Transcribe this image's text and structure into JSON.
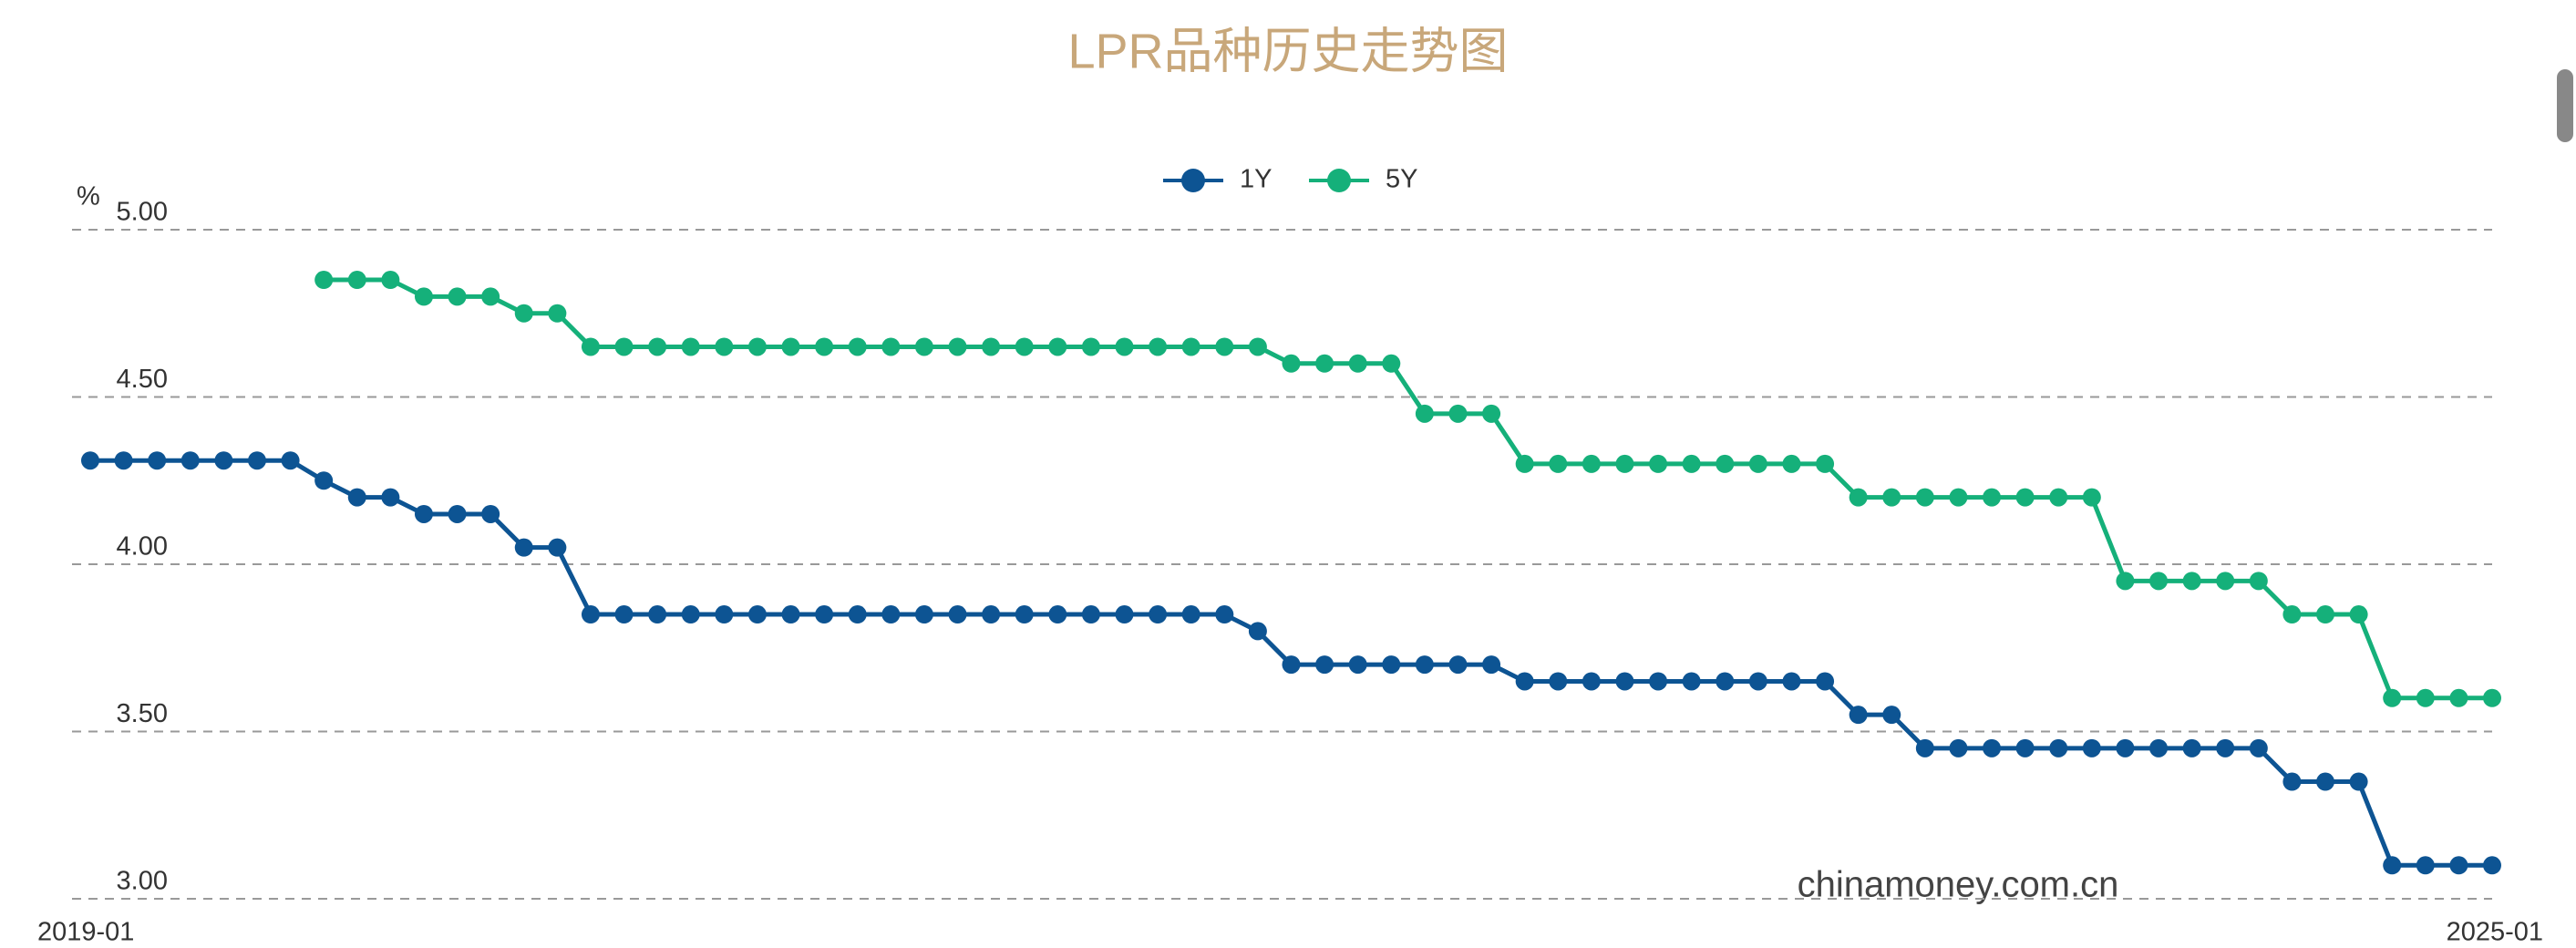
{
  "chart_data": {
    "type": "line",
    "title": "LPR品种历史走势图",
    "y_label": "%",
    "watermark": "chinamoney.com.cn",
    "categories": [
      "2019-01",
      null,
      null,
      null,
      null,
      null,
      null,
      null,
      null,
      null,
      null,
      null,
      null,
      null,
      null,
      null,
      null,
      null,
      null,
      null,
      null,
      null,
      null,
      null,
      null,
      null,
      null,
      null,
      null,
      null,
      null,
      null,
      null,
      null,
      null,
      null,
      null,
      null,
      null,
      null,
      null,
      null,
      null,
      null,
      null,
      null,
      null,
      null,
      null,
      null,
      null,
      null,
      null,
      null,
      null,
      null,
      null,
      null,
      null,
      null,
      null,
      null,
      null,
      null,
      null,
      null,
      null,
      null,
      null,
      null,
      null,
      null,
      "2025-01"
    ],
    "series": [
      {
        "name": "1Y",
        "color": "#0d5493",
        "values": [
          4.31,
          4.31,
          4.31,
          4.31,
          4.31,
          4.31,
          4.31,
          4.25,
          4.2,
          4.2,
          4.15,
          4.15,
          4.15,
          4.05,
          4.05,
          3.85,
          3.85,
          3.85,
          3.85,
          3.85,
          3.85,
          3.85,
          3.85,
          3.85,
          3.85,
          3.85,
          3.85,
          3.85,
          3.85,
          3.85,
          3.85,
          3.85,
          3.85,
          3.85,
          3.85,
          3.8,
          3.7,
          3.7,
          3.7,
          3.7,
          3.7,
          3.7,
          3.7,
          3.65,
          3.65,
          3.65,
          3.65,
          3.65,
          3.65,
          3.65,
          3.65,
          3.65,
          3.65,
          3.55,
          3.55,
          3.45,
          3.45,
          3.45,
          3.45,
          3.45,
          3.45,
          3.45,
          3.45,
          3.45,
          3.45,
          3.45,
          3.35,
          3.35,
          3.35,
          3.1,
          3.1,
          3.1,
          3.1
        ]
      },
      {
        "name": "5Y",
        "color": "#15b07a",
        "values": [
          null,
          null,
          null,
          null,
          null,
          null,
          null,
          4.85,
          4.85,
          4.85,
          4.8,
          4.8,
          4.8,
          4.75,
          4.75,
          4.65,
          4.65,
          4.65,
          4.65,
          4.65,
          4.65,
          4.65,
          4.65,
          4.65,
          4.65,
          4.65,
          4.65,
          4.65,
          4.65,
          4.65,
          4.65,
          4.65,
          4.65,
          4.65,
          4.65,
          4.65,
          4.6,
          4.6,
          4.6,
          4.6,
          4.45,
          4.45,
          4.45,
          4.3,
          4.3,
          4.3,
          4.3,
          4.3,
          4.3,
          4.3,
          4.3,
          4.3,
          4.3,
          4.2,
          4.2,
          4.2,
          4.2,
          4.2,
          4.2,
          4.2,
          4.2,
          3.95,
          3.95,
          3.95,
          3.95,
          3.95,
          3.85,
          3.85,
          3.85,
          3.6,
          3.6,
          3.6,
          3.6
        ]
      }
    ],
    "ylim": [
      3,
      5
    ],
    "yticks": [
      {
        "value": 5,
        "label": "5.00"
      },
      {
        "value": 4.5,
        "label": "4.50"
      },
      {
        "value": 4,
        "label": "4.00"
      },
      {
        "value": 3.5,
        "label": "3.50"
      },
      {
        "value": 3,
        "label": "3.00"
      }
    ],
    "grid": true,
    "legend": "top"
  }
}
